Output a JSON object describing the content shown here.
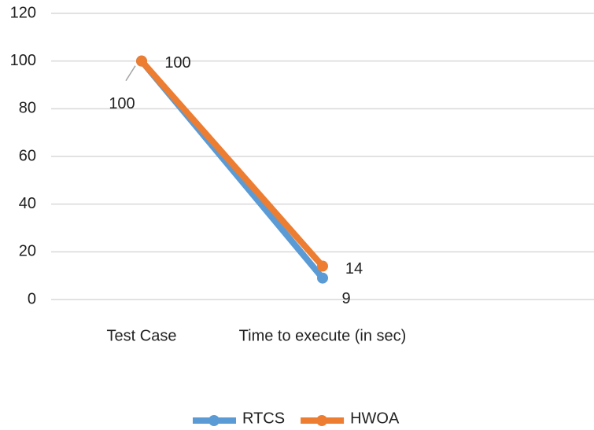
{
  "chart_data": {
    "type": "line",
    "categories": [
      "Test Case",
      "Time to execute (in sec)",
      null
    ],
    "series": [
      {
        "name": "RTCS",
        "color": "#5b9bd5",
        "values": [
          100,
          9,
          null
        ]
      },
      {
        "name": "HWOA",
        "color": "#ed7d31",
        "values": [
          100,
          14,
          null
        ]
      }
    ],
    "ylim": [
      0,
      120
    ],
    "yticks": [
      0,
      20,
      40,
      60,
      80,
      100,
      120
    ],
    "grid": true,
    "legend": "bottom"
  }
}
